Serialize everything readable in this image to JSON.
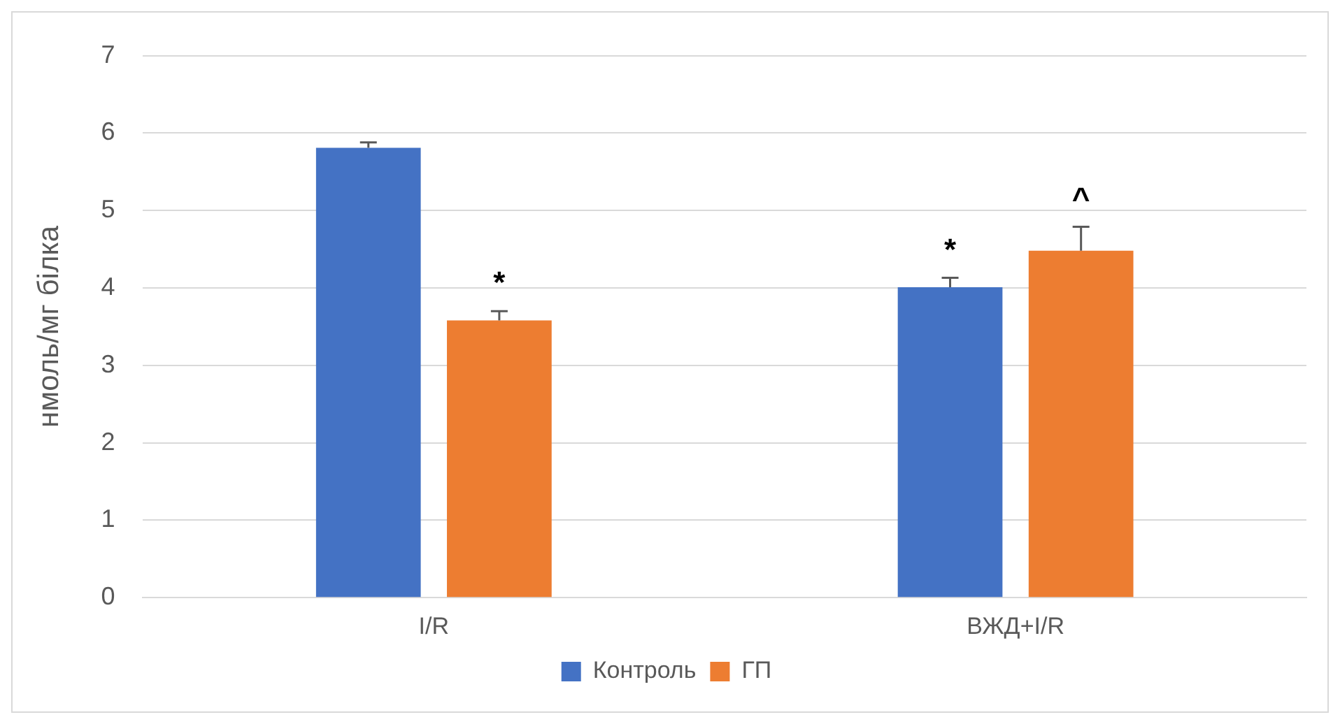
{
  "chart_data": {
    "type": "bar",
    "ylabel": "нмоль/мг білка",
    "categories": [
      "I/R",
      "ВЖД+I/R"
    ],
    "series": [
      {
        "name": "Контроль",
        "color": "#4472c4",
        "values": [
          5.81,
          4.01
        ],
        "value_labels": [
          null,
          "*"
        ],
        "errors": [
          [
            5.81,
            5.88
          ],
          [
            4.01,
            4.13
          ]
        ]
      },
      {
        "name": "ГП",
        "color": "#ed7d31",
        "values": [
          3.58,
          4.48
        ],
        "value_labels": [
          "*",
          "^"
        ],
        "errors": [
          [
            3.58,
            3.7
          ],
          [
            4.48,
            4.79
          ]
        ]
      }
    ],
    "ylim": [
      0,
      7
    ],
    "yticks": [
      0,
      1,
      2,
      3,
      4,
      5,
      6,
      7
    ],
    "grid": "y",
    "legend": "bottom"
  }
}
